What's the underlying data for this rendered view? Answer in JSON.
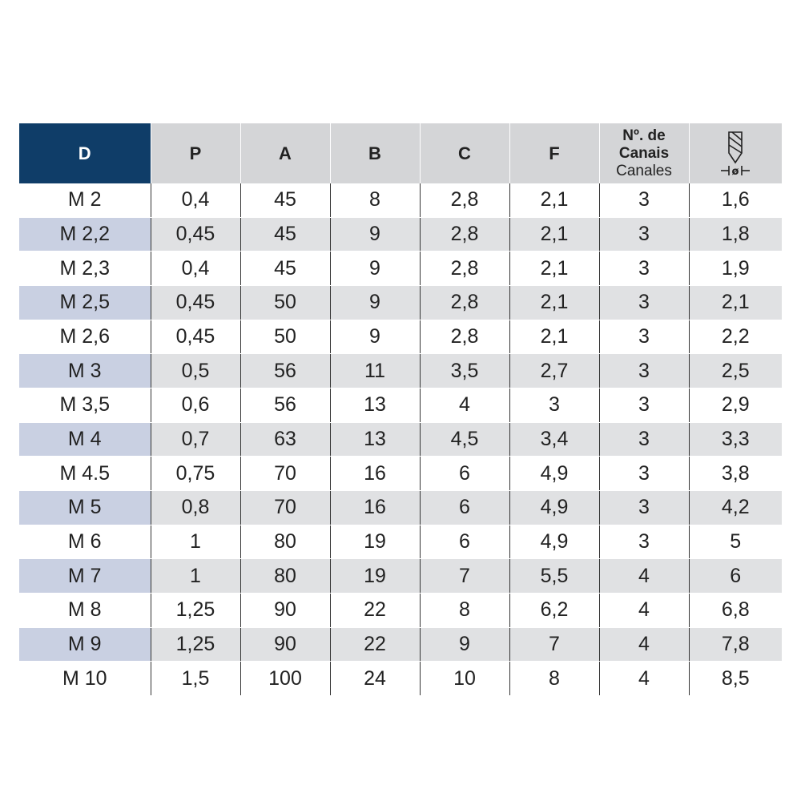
{
  "table": {
    "headers": {
      "d": "D",
      "p": "P",
      "a": "A",
      "b": "B",
      "c": "C",
      "f": "F",
      "canais_line1": "Nº. de",
      "canais_line2": "Canais",
      "canais_line3": "Canales",
      "drill_icon": "drill-diameter-icon",
      "drill_label": "ø"
    },
    "rows": [
      [
        "M 2",
        "0,4",
        "45",
        "8",
        "2,8",
        "2,1",
        "3",
        "1,6"
      ],
      [
        "M 2,2",
        "0,45",
        "45",
        "9",
        "2,8",
        "2,1",
        "3",
        "1,8"
      ],
      [
        "M 2,3",
        "0,4",
        "45",
        "9",
        "2,8",
        "2,1",
        "3",
        "1,9"
      ],
      [
        "M 2,5",
        "0,45",
        "50",
        "9",
        "2,8",
        "2,1",
        "3",
        "2,1"
      ],
      [
        "M 2,6",
        "0,45",
        "50",
        "9",
        "2,8",
        "2,1",
        "3",
        "2,2"
      ],
      [
        "M 3",
        "0,5",
        "56",
        "11",
        "3,5",
        "2,7",
        "3",
        "2,5"
      ],
      [
        "M 3,5",
        "0,6",
        "56",
        "13",
        "4",
        "3",
        "3",
        "2,9"
      ],
      [
        "M 4",
        "0,7",
        "63",
        "13",
        "4,5",
        "3,4",
        "3",
        "3,3"
      ],
      [
        "M 4.5",
        "0,75",
        "70",
        "16",
        "6",
        "4,9",
        "3",
        "3,8"
      ],
      [
        "M 5",
        "0,8",
        "70",
        "16",
        "6",
        "4,9",
        "3",
        "4,2"
      ],
      [
        "M 6",
        "1",
        "80",
        "19",
        "6",
        "4,9",
        "3",
        "5"
      ],
      [
        "M 7",
        "1",
        "80",
        "19",
        "7",
        "5,5",
        "4",
        "6"
      ],
      [
        "M 8",
        "1,25",
        "90",
        "22",
        "8",
        "6,2",
        "4",
        "6,8"
      ],
      [
        "M 9",
        "1,25",
        "90",
        "22",
        "9",
        "7",
        "4",
        "7,8"
      ],
      [
        "M 10",
        "1,5",
        "100",
        "24",
        "10",
        "8",
        "4",
        "8,5"
      ]
    ]
  },
  "colors": {
    "header_accent": "#0f3d68",
    "header_bg": "#d4d5d7",
    "row_shade": "#e0e1e3",
    "first_col_shade": "#c9d0e2"
  }
}
